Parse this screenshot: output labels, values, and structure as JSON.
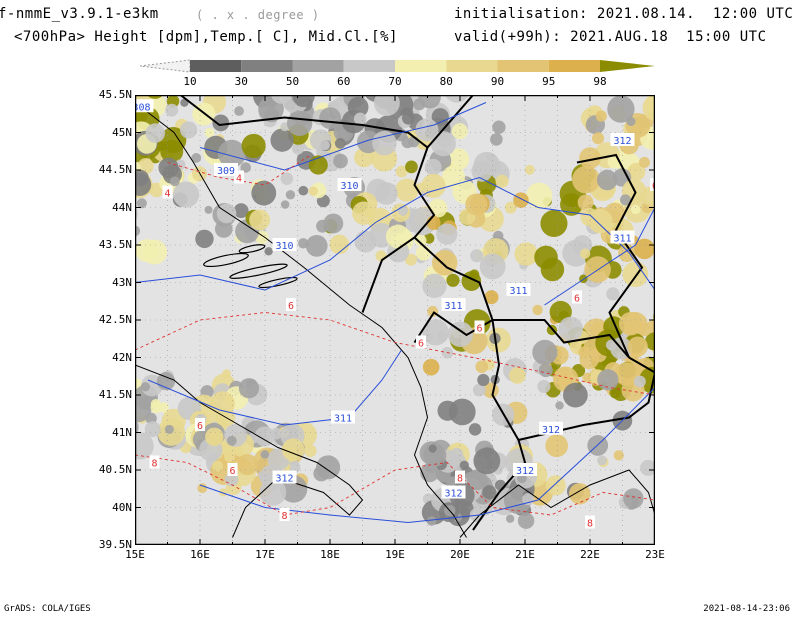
{
  "header": {
    "model": "f-nmmE_v3.9.1-e3km",
    "unit_hint": "( . x . degree )",
    "variables": "<700hPa> Height [dpm],Temp.[ C], Mid.Cl.[%]",
    "init": "initialisation: 2021.08.14.  12:00 UTC",
    "valid": "valid(+99h): 2021.AUG.18  15:00 UTC"
  },
  "colorbar": {
    "labels": [
      "10",
      "30",
      "50",
      "60",
      "70",
      "80",
      "90",
      "95",
      "98"
    ],
    "colors": [
      "#f2f2f2",
      "#5e5e5e",
      "#808080",
      "#a2a2a2",
      "#c8c8c8",
      "#f2efb0",
      "#e8d890",
      "#e2c474",
      "#dcb04c",
      "#8c8c00"
    ]
  },
  "map": {
    "lon_labels": [
      "15E",
      "16E",
      "17E",
      "18E",
      "19E",
      "20E",
      "21E",
      "22E",
      "23E"
    ],
    "lat_labels": [
      "45.5N",
      "45N",
      "44.5N",
      "44N",
      "43.5N",
      "43N",
      "42.5N",
      "42N",
      "41.5N",
      "41N",
      "40.5N",
      "40N",
      "39.5N"
    ],
    "height_labels": [
      "308",
      "309",
      "310",
      "310",
      "311",
      "311",
      "311",
      "311",
      "312",
      "312",
      "312",
      "312",
      "312"
    ],
    "temp_labels": [
      "4",
      "4",
      "6",
      "6",
      "6",
      "6",
      "6",
      "6",
      "6",
      "8",
      "8",
      "8",
      "8"
    ]
  },
  "footer": {
    "left": "GrADS: COLA/IGES",
    "right": "2021-08-14-23:06"
  }
}
